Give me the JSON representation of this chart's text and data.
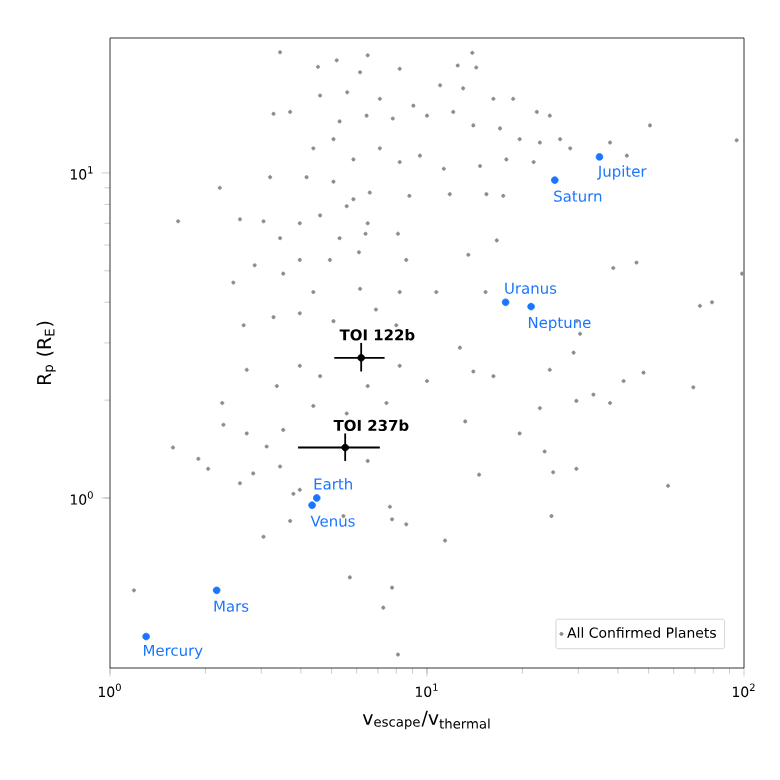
{
  "chart_data": {
    "type": "scatter",
    "xlabel": "v$_{escape}$/v$_{thermal}$",
    "ylabel": "R$_{p}$ (R$_{E}$)",
    "log": "xy",
    "xlim": [
      1,
      100
    ],
    "ylim": [
      0.3,
      26
    ],
    "xticks": [
      {
        "value": 1,
        "label": "10$^{0}$"
      },
      {
        "value": 10,
        "label": "10$^{1}$"
      },
      {
        "value": 100,
        "label": "10$^{2}$"
      }
    ],
    "yticks": [
      {
        "value": 1,
        "label": "10$^{0}$"
      },
      {
        "value": 10,
        "label": "10$^{1}$"
      }
    ],
    "legend": "bottom right",
    "series": [
      {
        "name": "All Confirmed Planets",
        "color": "#8c8c8c",
        "marker": "circle",
        "x": [
          3.44,
          4.53,
          5.19,
          6.5,
          13.9,
          14.3,
          12.5,
          8.2,
          6.15,
          4.6,
          5.6,
          7.1,
          9.06,
          11.0,
          13.0,
          16.2,
          18.7,
          22.2,
          24.4,
          3.28,
          3.7,
          5.3,
          6.45,
          7.8,
          10.0,
          12.1,
          14.0,
          17.0,
          19.6,
          22.7,
          26.3,
          28.3,
          37.8,
          42.7,
          50.5,
          94.8,
          4.38,
          5.07,
          5.86,
          7.1,
          8.2,
          9.5,
          11.3,
          14.7,
          17.8,
          21.7,
          2.22,
          3.2,
          4.17,
          5.07,
          5.86,
          6.6,
          8.8,
          11.8,
          15.4,
          17.4,
          1.64,
          2.57,
          3.05,
          3.44,
          3.97,
          4.6,
          5.58,
          6.5,
          5.3,
          6.4,
          8.1,
          16.6,
          2.86,
          3.97,
          4.94,
          6.1,
          8.6,
          13.5,
          38.7,
          45.8,
          98.6,
          2.45,
          3.52,
          4.38,
          6.15,
          8.2,
          10.7,
          15.3,
          72.6,
          79.3,
          2.64,
          3.28,
          3.97,
          5.07,
          6.9,
          8.0,
          12.7,
          29.6,
          29.0,
          30.4,
          2.26,
          1.58,
          1.9,
          2.04,
          2.57,
          2.83,
          2.7,
          3.12,
          3.44,
          3.79,
          3.97,
          3.7,
          3.05,
          5.45,
          7.64,
          7.76,
          8.6,
          11.4,
          5.71,
          7.76,
          7.28,
          8.1,
          1.19,
          6.5,
          13.2,
          14.6,
          19.6,
          23.5,
          25.0,
          29.6,
          24.7,
          57.6,
          22.7,
          29.6,
          37.8,
          33.5,
          41.7,
          48.2,
          69.2,
          14.0,
          16.2,
          24.4,
          2.7,
          2.28,
          3.52,
          4.38,
          5.58,
          7.45,
          10.0,
          8.2,
          3.97,
          3.36,
          4.6,
          6.5
        ],
        "values": [
          23.5,
          21.2,
          22.2,
          23.0,
          23.4,
          21.1,
          21.4,
          20.9,
          20.4,
          17.3,
          17.7,
          16.9,
          16.1,
          18.6,
          18.2,
          16.9,
          16.9,
          15.4,
          15.0,
          15.2,
          15.4,
          14.4,
          15.0,
          14.7,
          15.0,
          15.4,
          14.0,
          13.7,
          12.7,
          12.4,
          12.7,
          11.9,
          12.4,
          11.3,
          14.0,
          12.6,
          11.9,
          12.7,
          11.0,
          11.9,
          10.8,
          11.3,
          10.3,
          10.5,
          11.0,
          10.8,
          9.0,
          9.7,
          9.7,
          9.4,
          8.3,
          8.7,
          8.5,
          8.6,
          8.6,
          8.5,
          7.1,
          7.2,
          7.1,
          6.3,
          7.0,
          7.4,
          7.9,
          7.0,
          6.3,
          6.5,
          6.5,
          6.2,
          5.2,
          5.4,
          5.4,
          5.7,
          5.4,
          5.6,
          5.1,
          5.3,
          4.9,
          4.6,
          4.9,
          4.3,
          4.4,
          4.3,
          4.3,
          4.3,
          3.9,
          4.0,
          3.4,
          3.6,
          3.7,
          3.5,
          3.8,
          3.4,
          2.9,
          3.5,
          2.8,
          3.2,
          1.96,
          1.43,
          1.32,
          1.23,
          1.11,
          1.19,
          1.58,
          1.44,
          1.25,
          1.03,
          1.06,
          0.85,
          0.76,
          0.88,
          0.94,
          0.86,
          0.83,
          0.74,
          0.57,
          0.53,
          0.46,
          0.33,
          0.52,
          1.3,
          1.72,
          1.18,
          1.58,
          1.39,
          1.2,
          1.23,
          0.88,
          1.09,
          1.89,
          1.99,
          1.96,
          2.08,
          2.29,
          2.43,
          2.19,
          2.45,
          2.37,
          2.48,
          2.48,
          1.68,
          1.62,
          1.92,
          1.82,
          1.96,
          2.29,
          2.55,
          2.55,
          2.21,
          2.37,
          2.21
        ]
      },
      {
        "name": "Mercury",
        "color": "#1a75ff",
        "marker": "circle",
        "x": [
          1.3
        ],
        "values": [
          0.375
        ]
      },
      {
        "name": "Mars",
        "color": "#1a75ff",
        "marker": "circle",
        "x": [
          2.17
        ],
        "values": [
          0.52
        ]
      },
      {
        "name": "Venus",
        "color": "#1a75ff",
        "marker": "circle",
        "x": [
          4.34
        ],
        "values": [
          0.95
        ]
      },
      {
        "name": "Earth",
        "color": "#1a75ff",
        "marker": "circle",
        "x": [
          4.49
        ],
        "values": [
          1.0
        ]
      },
      {
        "name": "Uranus",
        "color": "#1a75ff",
        "marker": "circle",
        "x": [
          17.7
        ],
        "values": [
          4.0
        ]
      },
      {
        "name": "Neptune",
        "color": "#1a75ff",
        "marker": "circle",
        "x": [
          21.3
        ],
        "values": [
          3.88
        ]
      },
      {
        "name": "Saturn",
        "color": "#1a75ff",
        "marker": "circle",
        "x": [
          25.3
        ],
        "values": [
          9.5
        ]
      },
      {
        "name": "Jupiter",
        "color": "#1a75ff",
        "marker": "circle",
        "x": [
          35
        ],
        "values": [
          11.2
        ]
      },
      {
        "name": "TOI 122b",
        "color": "#000000",
        "marker": "none",
        "x": [
          6.2
        ],
        "values": [
          2.7
        ],
        "xerrors": [
          [
            5.1,
            7.35
          ]
        ],
        "errors": [
          [
            2.45,
            3.0
          ]
        ]
      },
      {
        "name": "TOI 237b",
        "color": "#000000",
        "marker": "none",
        "x": [
          5.52
        ],
        "values": [
          1.43
        ],
        "xerrors": [
          [
            3.92,
            7.1
          ]
        ],
        "errors": [
          [
            1.3,
            1.58
          ]
        ]
      }
    ]
  }
}
